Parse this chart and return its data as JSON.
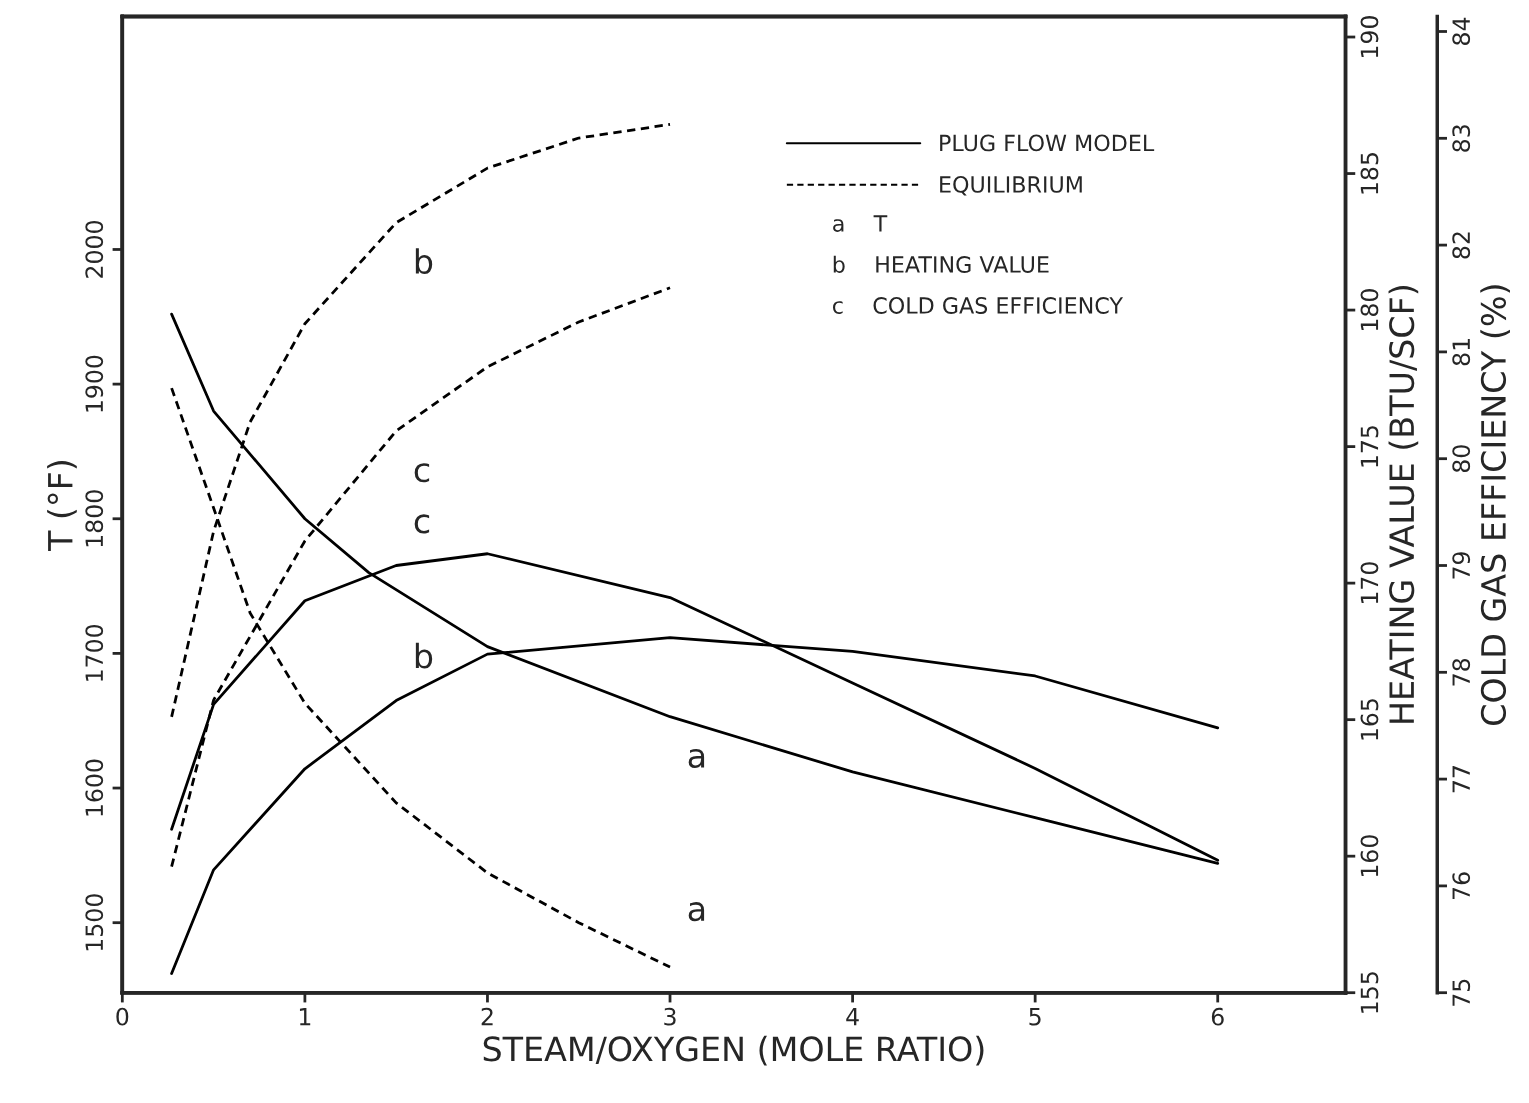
{
  "chart_data": {
    "type": "line",
    "xlabel": "STEAM/OXYGEN (MOLE RATIO)",
    "ylabel": "T (°F)",
    "y2label": "HEATING VALUE (BTU/SCF)",
    "y3label": "COLD GAS EFFICIENCY (%)",
    "xlim": [
      0,
      6.7
    ],
    "xticks": [
      0,
      1,
      2,
      3,
      4,
      5,
      6
    ],
    "ylim": [
      1448,
      2173
    ],
    "yticks": [
      1500,
      1600,
      1700,
      1800,
      1900,
      2000
    ],
    "y2lim": [
      155,
      190.75
    ],
    "y2ticks": [
      155,
      160,
      165,
      170,
      175,
      180,
      185,
      190
    ],
    "y3lim": [
      75,
      84.14
    ],
    "y3ticks": [
      75,
      76,
      77,
      78,
      79,
      80,
      81,
      82,
      83,
      84
    ],
    "grid": false,
    "series": [
      {
        "axis": "y",
        "line_style": "solid",
        "color": "#000000",
        "x": [
          0.27,
          0.5,
          1,
          1.35,
          2,
          3,
          4,
          5,
          6
        ],
        "values": [
          1952,
          1880,
          1800,
          1760,
          1705,
          1653,
          1612,
          1578,
          1544
        ]
      },
      {
        "axis": "y2",
        "line_style": "solid",
        "color": "#000000",
        "x": [
          0.27,
          0.5,
          1,
          1.5,
          2,
          3,
          4,
          5,
          6
        ],
        "values": [
          155.7,
          159.5,
          163.2,
          165.7,
          167.4,
          168.0,
          167.5,
          166.6,
          164.7
        ]
      },
      {
        "axis": "y3",
        "line_style": "solid",
        "color": "#000000",
        "x": [
          0.27,
          0.5,
          1,
          1.5,
          2,
          3,
          4,
          5,
          6
        ],
        "values": [
          76.53,
          77.7,
          78.67,
          79.0,
          79.11,
          78.7,
          77.9,
          77.1,
          76.24
        ]
      },
      {
        "axis": "y",
        "line_style": "dashed",
        "color": "#000000",
        "x": [
          0.27,
          0.5,
          0.7,
          1,
          1.5,
          2,
          2.5,
          3
        ],
        "values": [
          1897,
          1808,
          1730,
          1663,
          1589,
          1537,
          1500,
          1467
        ]
      },
      {
        "axis": "y2",
        "line_style": "dashed",
        "color": "#000000",
        "x": [
          0.27,
          0.5,
          0.7,
          1,
          1.5,
          2,
          2.5,
          3
        ],
        "values": [
          165.1,
          171.9,
          175.9,
          179.5,
          183.2,
          185.2,
          186.3,
          186.8
        ]
      },
      {
        "axis": "y3",
        "line_style": "dashed",
        "color": "#000000",
        "x": [
          0.27,
          0.5,
          1,
          1.5,
          2,
          2.5,
          3
        ],
        "values": [
          76.18,
          77.74,
          79.23,
          80.26,
          80.86,
          81.28,
          81.6
        ]
      }
    ],
    "annotations": [
      "PLUG FLOW MODEL",
      "EQUILIBRIUM",
      "a    T",
      "b    HEATING VALUE",
      "c    COLD GAS EFFICIENCY",
      "a",
      "b",
      "c",
      "a",
      "b",
      "c"
    ]
  }
}
